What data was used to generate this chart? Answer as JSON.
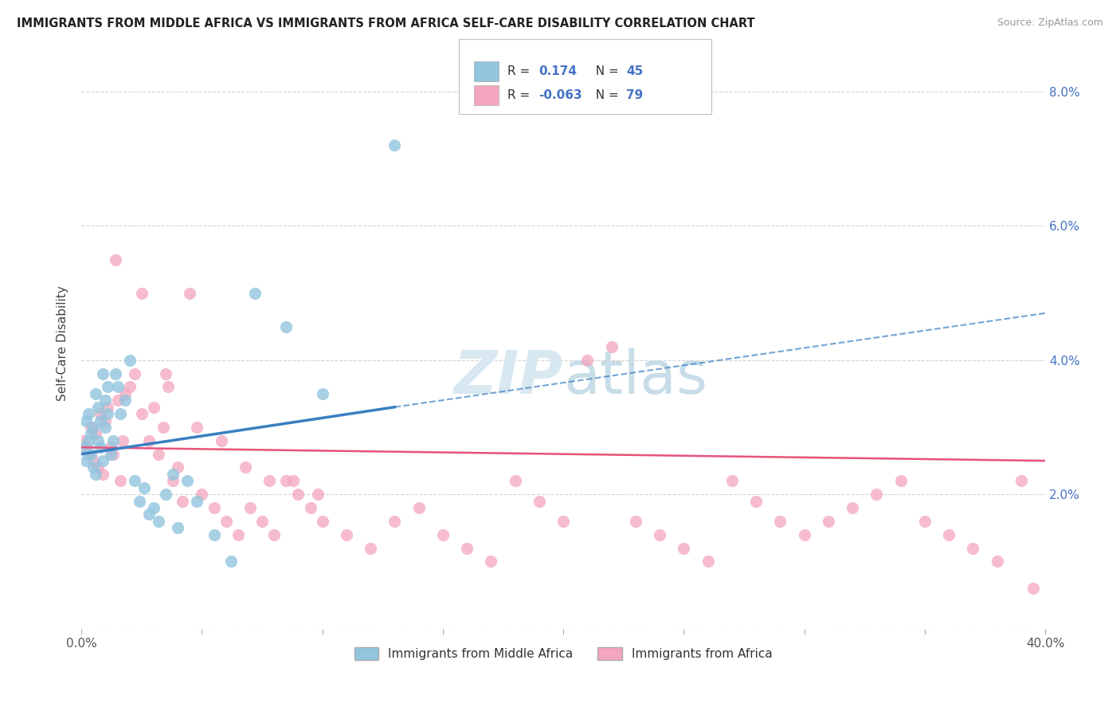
{
  "title": "IMMIGRANTS FROM MIDDLE AFRICA VS IMMIGRANTS FROM AFRICA SELF-CARE DISABILITY CORRELATION CHART",
  "source": "Source: ZipAtlas.com",
  "ylabel": "Self-Care Disability",
  "xlim": [
    0.0,
    0.4
  ],
  "ylim": [
    0.0,
    0.085
  ],
  "xtick_vals": [
    0.0,
    0.05,
    0.1,
    0.15,
    0.2,
    0.25,
    0.3,
    0.35,
    0.4
  ],
  "xtick_labels": [
    "0.0%",
    "",
    "",
    "",
    "",
    "",
    "",
    "",
    "40.0%"
  ],
  "ytick_vals": [
    0.0,
    0.02,
    0.04,
    0.06,
    0.08
  ],
  "ytick_labels": [
    "",
    "2.0%",
    "4.0%",
    "6.0%",
    "8.0%"
  ],
  "legend_r_blue": "0.174",
  "legend_n_blue": "45",
  "legend_r_pink": "-0.063",
  "legend_n_pink": "79",
  "blue_color": "#92c5de",
  "pink_color": "#f4a6be",
  "trendline_blue_solid": "#3a7fc1",
  "trendline_pink": "#e8527a",
  "background_color": "#ffffff",
  "grid_color": "#d0d0d0",
  "watermark_color": "#d8e8f0",
  "blue_scatter_x": [
    0.001,
    0.002,
    0.002,
    0.003,
    0.003,
    0.004,
    0.004,
    0.005,
    0.005,
    0.006,
    0.006,
    0.007,
    0.007,
    0.008,
    0.008,
    0.009,
    0.009,
    0.01,
    0.01,
    0.011,
    0.011,
    0.012,
    0.013,
    0.014,
    0.015,
    0.016,
    0.018,
    0.02,
    0.022,
    0.024,
    0.026,
    0.028,
    0.03,
    0.032,
    0.035,
    0.038,
    0.04,
    0.044,
    0.048,
    0.055,
    0.062,
    0.072,
    0.085,
    0.1,
    0.13
  ],
  "blue_scatter_y": [
    0.027,
    0.031,
    0.025,
    0.028,
    0.032,
    0.026,
    0.029,
    0.024,
    0.03,
    0.023,
    0.035,
    0.028,
    0.033,
    0.027,
    0.031,
    0.025,
    0.038,
    0.03,
    0.034,
    0.032,
    0.036,
    0.026,
    0.028,
    0.038,
    0.036,
    0.032,
    0.034,
    0.04,
    0.022,
    0.019,
    0.021,
    0.017,
    0.018,
    0.016,
    0.02,
    0.023,
    0.015,
    0.022,
    0.019,
    0.014,
    0.01,
    0.05,
    0.045,
    0.035,
    0.072
  ],
  "pink_scatter_x": [
    0.001,
    0.002,
    0.003,
    0.004,
    0.005,
    0.006,
    0.007,
    0.008,
    0.009,
    0.01,
    0.011,
    0.012,
    0.013,
    0.015,
    0.016,
    0.017,
    0.018,
    0.02,
    0.022,
    0.025,
    0.028,
    0.03,
    0.032,
    0.034,
    0.036,
    0.038,
    0.04,
    0.042,
    0.045,
    0.05,
    0.055,
    0.06,
    0.065,
    0.07,
    0.075,
    0.08,
    0.085,
    0.09,
    0.095,
    0.1,
    0.11,
    0.12,
    0.13,
    0.14,
    0.15,
    0.16,
    0.17,
    0.18,
    0.19,
    0.2,
    0.21,
    0.22,
    0.23,
    0.24,
    0.25,
    0.26,
    0.27,
    0.28,
    0.29,
    0.3,
    0.31,
    0.32,
    0.33,
    0.34,
    0.35,
    0.36,
    0.37,
    0.38,
    0.39,
    0.395,
    0.014,
    0.025,
    0.035,
    0.048,
    0.058,
    0.068,
    0.078,
    0.088,
    0.098
  ],
  "pink_scatter_y": [
    0.028,
    0.027,
    0.026,
    0.03,
    0.025,
    0.029,
    0.024,
    0.032,
    0.023,
    0.031,
    0.033,
    0.027,
    0.026,
    0.034,
    0.022,
    0.028,
    0.035,
    0.036,
    0.038,
    0.032,
    0.028,
    0.033,
    0.026,
    0.03,
    0.036,
    0.022,
    0.024,
    0.019,
    0.05,
    0.02,
    0.018,
    0.016,
    0.014,
    0.018,
    0.016,
    0.014,
    0.022,
    0.02,
    0.018,
    0.016,
    0.014,
    0.012,
    0.016,
    0.018,
    0.014,
    0.012,
    0.01,
    0.022,
    0.019,
    0.016,
    0.04,
    0.042,
    0.016,
    0.014,
    0.012,
    0.01,
    0.022,
    0.019,
    0.016,
    0.014,
    0.016,
    0.018,
    0.02,
    0.022,
    0.016,
    0.014,
    0.012,
    0.01,
    0.022,
    0.006,
    0.055,
    0.05,
    0.038,
    0.03,
    0.028,
    0.024,
    0.022,
    0.022,
    0.02
  ],
  "blue_trend_x0": 0.0,
  "blue_trend_y0": 0.026,
  "blue_trend_x_solid_end": 0.13,
  "blue_trend_y_solid_end": 0.033,
  "blue_trend_x_dash_end": 0.4,
  "blue_trend_y_dash_end": 0.047,
  "pink_trend_x0": 0.0,
  "pink_trend_y0": 0.027,
  "pink_trend_x_end": 0.4,
  "pink_trend_y_end": 0.025
}
